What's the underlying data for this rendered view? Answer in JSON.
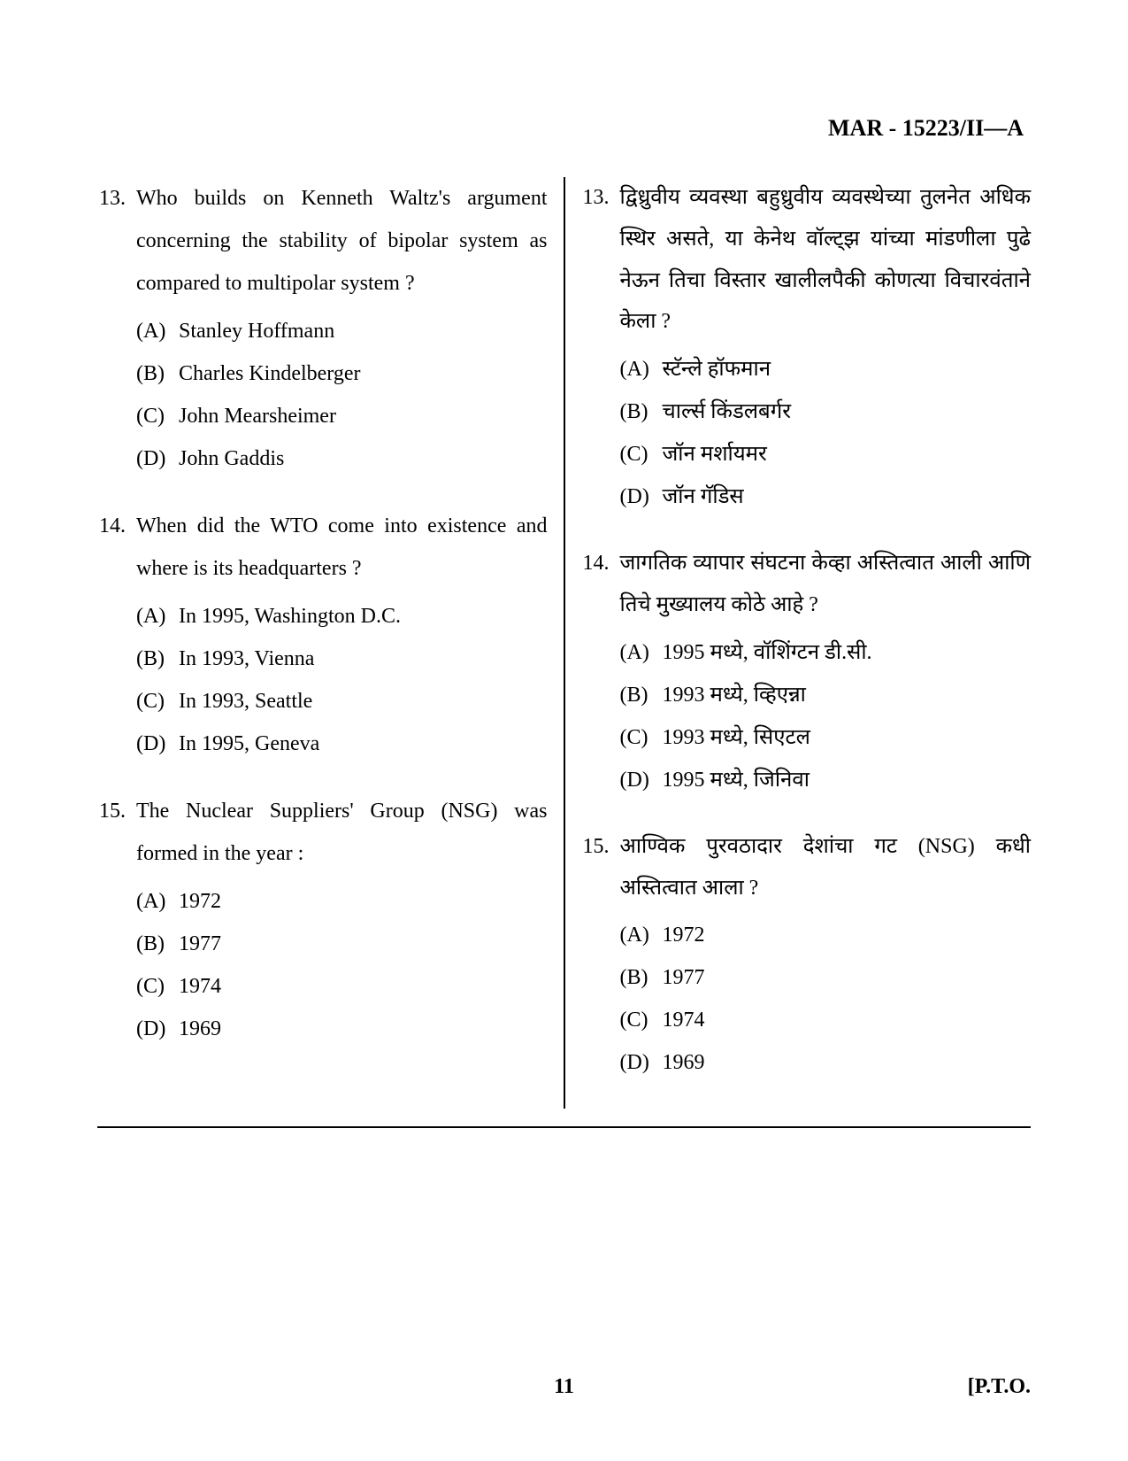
{
  "header": {
    "code": "MAR - 15223/II—A"
  },
  "left": {
    "questions": [
      {
        "num": "13.",
        "text": "Who builds on Kenneth Waltz's argument concerning the stability of bipolar system as compared to multipolar system ?",
        "options": [
          {
            "label": "(A)",
            "text": "Stanley Hoffmann"
          },
          {
            "label": "(B)",
            "text": "Charles Kindelberger"
          },
          {
            "label": "(C)",
            "text": "John Mearsheimer"
          },
          {
            "label": "(D)",
            "text": "John Gaddis"
          }
        ]
      },
      {
        "num": "14.",
        "text": "When did the WTO come into existence and where is its headquarters ?",
        "options": [
          {
            "label": "(A)",
            "text": "In 1995, Washington D.C."
          },
          {
            "label": "(B)",
            "text": "In 1993, Vienna"
          },
          {
            "label": "(C)",
            "text": "In 1993, Seattle"
          },
          {
            "label": "(D)",
            "text": "In 1995, Geneva"
          }
        ]
      },
      {
        "num": "15.",
        "text": "The Nuclear Suppliers' Group (NSG) was formed in the year :",
        "options": [
          {
            "label": "(A)",
            "text": "1972"
          },
          {
            "label": "(B)",
            "text": "1977"
          },
          {
            "label": "(C)",
            "text": "1974"
          },
          {
            "label": "(D)",
            "text": "1969"
          }
        ]
      }
    ]
  },
  "right": {
    "questions": [
      {
        "num": "13.",
        "text": "द्विध्रुवीय व्यवस्था बहुध्रुवीय व्यवस्थेच्या तुलनेत अधिक स्थिर असते, या केनेथ वॉल्ट्झ यांच्या मांडणीला पुढे नेऊन तिचा विस्तार खालीलपैकी कोणत्या विचारवंताने केला ?",
        "options": [
          {
            "label": "(A)",
            "text": "स्टॅन्ले हॉफमान"
          },
          {
            "label": "(B)",
            "text": "चार्ल्स किंडलबर्गर"
          },
          {
            "label": "(C)",
            "text": "जॉन मर्शायमर"
          },
          {
            "label": "(D)",
            "text": "जॉन गॅडिस"
          }
        ]
      },
      {
        "num": "14.",
        "text": "जागतिक व्यापार संघटना केव्हा अस्तित्वात आली आणि तिचे मुख्यालय कोठे आहे ?",
        "options": [
          {
            "label": "(A)",
            "text": "1995 मध्ये, वॉशिंग्टन डी.सी."
          },
          {
            "label": "(B)",
            "text": "1993 मध्ये, व्हिएन्ना"
          },
          {
            "label": "(C)",
            "text": "1993 मध्ये, सिएटल"
          },
          {
            "label": "(D)",
            "text": "1995 मध्ये, जिनिवा"
          }
        ]
      },
      {
        "num": "15.",
        "text": "आण्विक पुरवठादार देशांचा गट (NSG) कधी अस्तित्वात आला ?",
        "options": [
          {
            "label": "(A)",
            "text": "1972"
          },
          {
            "label": "(B)",
            "text": "1977"
          },
          {
            "label": "(C)",
            "text": "1974"
          },
          {
            "label": "(D)",
            "text": "1969"
          }
        ]
      }
    ]
  },
  "footer": {
    "page": "11",
    "pto": "[P.T.O."
  }
}
